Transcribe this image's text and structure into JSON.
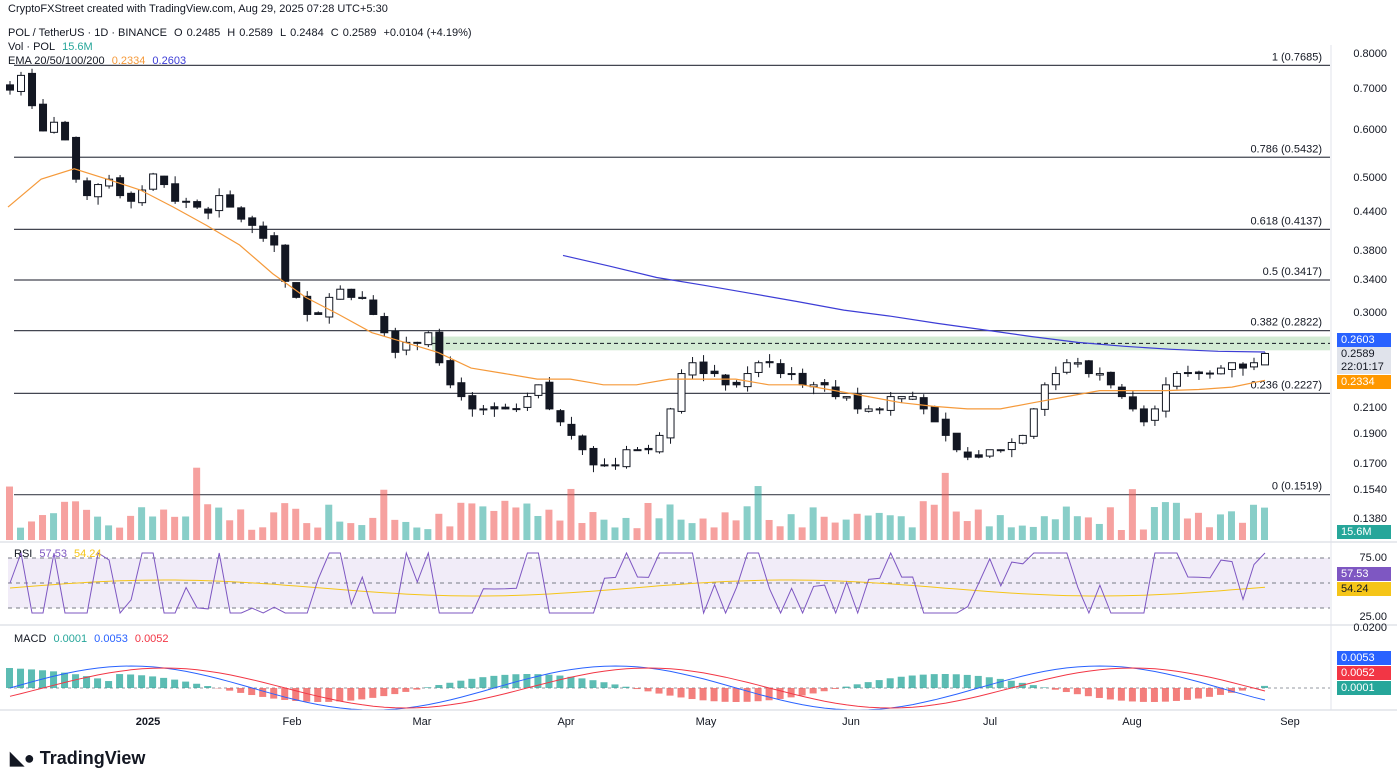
{
  "header": {
    "credit": "CryptoFXStreet created with TradingView.com, Aug 29, 2025 07:28 UTC+5:30",
    "symbol": "POL / TetherUS · 1D · BINANCE",
    "ohlc": {
      "O": "0.2485",
      "H": "0.2589",
      "L": "0.2484",
      "C": "0.2589",
      "change": "+0.0104 (+4.19%)"
    },
    "vol_label": "Vol · POL",
    "vol_value": "15.6M",
    "ema_label": "EMA 20/50/100/200",
    "ema_a": "0.2334",
    "ema_b": "0.2603"
  },
  "colors": {
    "up": "#26a69a",
    "down": "#ef5350",
    "ema_orange": "#f59a3b",
    "ema_blue": "#3d3dd6",
    "rsi": "#7e57c2",
    "rsi_ma": "#f5c518",
    "macd": "#2962ff",
    "signal": "#f23645",
    "zone": "#c8e6c9"
  },
  "chart_data": {
    "type": "candlestick",
    "title": "POL / TetherUS · 1D · BINANCE",
    "y_scale": "log",
    "y_ticks": [
      "0.8000",
      "0.7000",
      "0.6000",
      "0.5000",
      "0.4400",
      "0.3800",
      "0.3400",
      "0.3000",
      "0.2100",
      "0.1900",
      "0.1700",
      "0.1540",
      "0.1380"
    ],
    "x_ticks": [
      "2025",
      "Feb",
      "Mar",
      "Apr",
      "May",
      "Jun",
      "Jul",
      "Aug",
      "Sep"
    ],
    "fib_levels": [
      {
        "label": "1 (0.7685)",
        "value": 0.7685
      },
      {
        "label": "0.786 (0.5432)",
        "value": 0.5432
      },
      {
        "label": "0.618 (0.4137)",
        "value": 0.4137
      },
      {
        "label": "0.5 (0.3417)",
        "value": 0.3417
      },
      {
        "label": "0.382 (0.2822)",
        "value": 0.2822
      },
      {
        "label": "0.236 (0.2227)",
        "value": 0.2227
      },
      {
        "label": "0 (0.1519)",
        "value": 0.1519
      }
    ],
    "resistance_zone": [
      0.262,
      0.276
    ],
    "price_tags": [
      {
        "text": "0.2603",
        "value": 0.2603,
        "color": "#2962ff"
      },
      {
        "text": "0.2589",
        "value": 0.2589,
        "color": "#e0e3eb"
      },
      {
        "text": "22:01:17",
        "value": 0.2535,
        "color": "#e0e3eb"
      },
      {
        "text": "0.2334",
        "value": 0.2334,
        "color": "#ff9800"
      }
    ],
    "volume_tag": "15.6M",
    "close_series": [
      0.7,
      0.74,
      0.66,
      0.6,
      0.62,
      0.58,
      0.5,
      0.47,
      0.49,
      0.5,
      0.47,
      0.46,
      0.48,
      0.51,
      0.49,
      0.46,
      0.46,
      0.45,
      0.44,
      0.47,
      0.45,
      0.43,
      0.42,
      0.4,
      0.39,
      0.34,
      0.32,
      0.3,
      0.3,
      0.32,
      0.33,
      0.32,
      0.32,
      0.3,
      0.28,
      0.26,
      0.27,
      0.27,
      0.28,
      0.25,
      0.23,
      0.22,
      0.21,
      0.21,
      0.21,
      0.21,
      0.21,
      0.22,
      0.23,
      0.21,
      0.2,
      0.19,
      0.18,
      0.17,
      0.17,
      0.17,
      0.18,
      0.18,
      0.18,
      0.19,
      0.21,
      0.24,
      0.25,
      0.24,
      0.24,
      0.23,
      0.23,
      0.24,
      0.25,
      0.25,
      0.24,
      0.24,
      0.23,
      0.23,
      0.23,
      0.22,
      0.22,
      0.21,
      0.21,
      0.21,
      0.22,
      0.22,
      0.22,
      0.21,
      0.2,
      0.19,
      0.18,
      0.175,
      0.175,
      0.18,
      0.18,
      0.185,
      0.19,
      0.21,
      0.23,
      0.24,
      0.25,
      0.25,
      0.24,
      0.24,
      0.23,
      0.22,
      0.21,
      0.2,
      0.21,
      0.23,
      0.24,
      0.24,
      0.24,
      0.24,
      0.245,
      0.25,
      0.245,
      0.25,
      0.2589
    ],
    "ema_orange_series": [
      0.45,
      0.5,
      0.52,
      0.5,
      0.48,
      0.45,
      0.42,
      0.39,
      0.35,
      0.32,
      0.3,
      0.28,
      0.27,
      0.26,
      0.245,
      0.24,
      0.235,
      0.235,
      0.23,
      0.23,
      0.235,
      0.235,
      0.235,
      0.23,
      0.23,
      0.225,
      0.22,
      0.215,
      0.212,
      0.21,
      0.21,
      0.215,
      0.22,
      0.225,
      0.225,
      0.225,
      0.226,
      0.228,
      0.234
    ],
    "ema_blue_series": [
      0.375,
      0.36,
      0.345,
      0.335,
      0.325,
      0.315,
      0.305,
      0.298,
      0.29,
      0.283,
      0.276,
      0.27,
      0.266,
      0.263,
      0.261,
      0.2603
    ],
    "rsi": {
      "value": "57.53",
      "ma": "54.24",
      "levels": [
        "75.00",
        "50.00",
        "25.00"
      ]
    },
    "macd": {
      "macd": "0.0001",
      "signal": "0.0053",
      "hist": "0.0052",
      "top_tick": "0.0200",
      "tags": [
        "0.0053",
        "0.0052",
        "0.0001"
      ]
    }
  }
}
